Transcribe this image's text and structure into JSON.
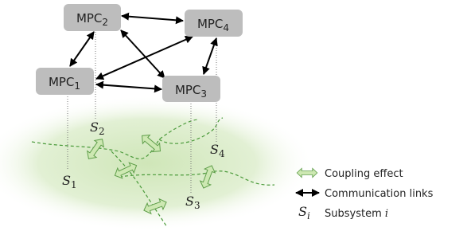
{
  "nodes": [
    {
      "label": "MPC",
      "subscript": "2"
    },
    {
      "label": "MPC",
      "subscript": "4"
    },
    {
      "label": "MPC",
      "subscript": "1"
    },
    {
      "label": "MPC",
      "subscript": "3"
    }
  ],
  "subsystems": [
    {
      "label": "S",
      "subscript": "2"
    },
    {
      "label": "S",
      "subscript": "4"
    },
    {
      "label": "S",
      "subscript": "1"
    },
    {
      "label": "S",
      "subscript": "3"
    }
  ],
  "legend": [
    {
      "text": "Coupling effect"
    },
    {
      "text": "Communication links"
    },
    {
      "symbol": "S",
      "subscript": "i",
      "text": "Subsystem",
      "variable": "i"
    }
  ]
}
